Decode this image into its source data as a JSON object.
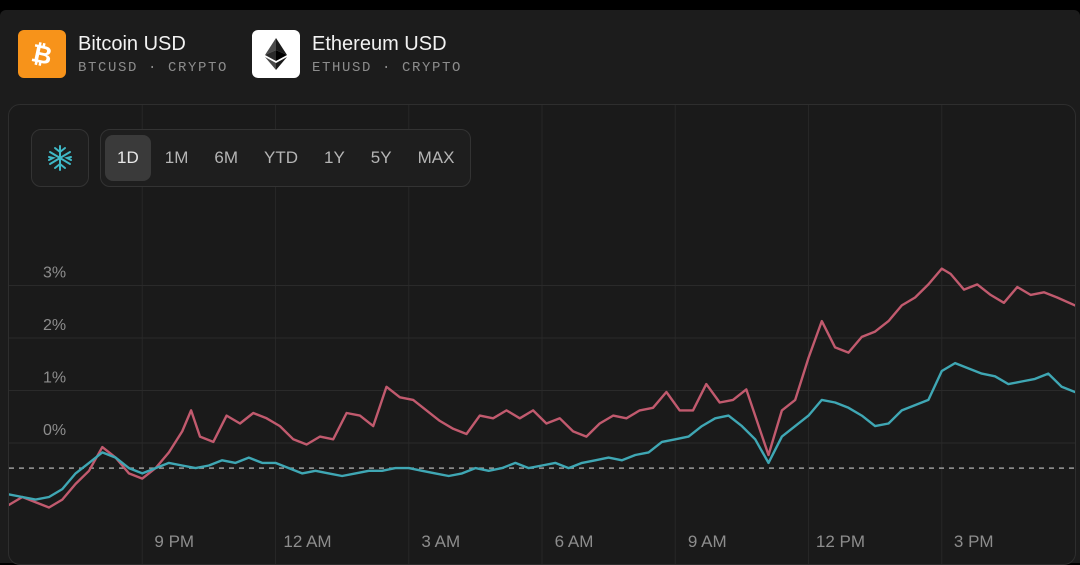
{
  "tickers": [
    {
      "name": "Bitcoin USD",
      "sub": "BTCUSD · CRYPTO",
      "logo_color": "#f7931a",
      "glyph": "₿",
      "icon": "bitcoin-logo-icon"
    },
    {
      "name": "Ethereum USD",
      "sub": "ETHUSD · CRYPTO",
      "logo_color": "#ffffff",
      "icon": "ethereum-logo-icon"
    }
  ],
  "toolbar": {
    "compare_icon": "compare-spark-icon",
    "ranges": [
      "1D",
      "1M",
      "6M",
      "YTD",
      "1Y",
      "5Y",
      "MAX"
    ],
    "active_range": "1D"
  },
  "chart_data": {
    "type": "line",
    "y_unit": "%",
    "ylim": [
      -1.0,
      4.5
    ],
    "y_ticks": [
      0,
      1,
      2,
      3
    ],
    "y_tick_labels": [
      "0%",
      "1%",
      "2%",
      "3%"
    ],
    "x_tick_labels": [
      "9 PM",
      "12 AM",
      "3 AM",
      "6 AM",
      "9 AM",
      "12 PM",
      "3 PM"
    ],
    "x_tick_positions_hours": [
      3,
      6,
      9,
      12,
      15,
      18,
      21
    ],
    "x_range_hours": [
      0,
      24
    ],
    "baseline": -0.25,
    "grid": true,
    "series": [
      {
        "color": "#c15a6e",
        "points": [
          [
            0.0,
            -0.95
          ],
          [
            0.3,
            -0.8
          ],
          [
            0.6,
            -0.9
          ],
          [
            0.9,
            -1.0
          ],
          [
            1.2,
            -0.85
          ],
          [
            1.5,
            -0.55
          ],
          [
            1.8,
            -0.3
          ],
          [
            2.1,
            0.15
          ],
          [
            2.4,
            -0.05
          ],
          [
            2.7,
            -0.35
          ],
          [
            3.0,
            -0.45
          ],
          [
            3.3,
            -0.25
          ],
          [
            3.6,
            0.05
          ],
          [
            3.9,
            0.45
          ],
          [
            4.1,
            0.85
          ],
          [
            4.3,
            0.35
          ],
          [
            4.6,
            0.25
          ],
          [
            4.9,
            0.75
          ],
          [
            5.2,
            0.6
          ],
          [
            5.5,
            0.8
          ],
          [
            5.8,
            0.7
          ],
          [
            6.1,
            0.55
          ],
          [
            6.4,
            0.3
          ],
          [
            6.7,
            0.2
          ],
          [
            7.0,
            0.35
          ],
          [
            7.3,
            0.3
          ],
          [
            7.6,
            0.8
          ],
          [
            7.9,
            0.75
          ],
          [
            8.2,
            0.55
          ],
          [
            8.5,
            1.3
          ],
          [
            8.8,
            1.1
          ],
          [
            9.1,
            1.05
          ],
          [
            9.4,
            0.85
          ],
          [
            9.7,
            0.65
          ],
          [
            10.0,
            0.5
          ],
          [
            10.3,
            0.4
          ],
          [
            10.6,
            0.75
          ],
          [
            10.9,
            0.7
          ],
          [
            11.2,
            0.85
          ],
          [
            11.5,
            0.7
          ],
          [
            11.8,
            0.85
          ],
          [
            12.1,
            0.6
          ],
          [
            12.4,
            0.7
          ],
          [
            12.7,
            0.45
          ],
          [
            13.0,
            0.35
          ],
          [
            13.3,
            0.6
          ],
          [
            13.6,
            0.75
          ],
          [
            13.9,
            0.7
          ],
          [
            14.2,
            0.85
          ],
          [
            14.5,
            0.9
          ],
          [
            14.8,
            1.2
          ],
          [
            15.1,
            0.85
          ],
          [
            15.4,
            0.85
          ],
          [
            15.7,
            1.35
          ],
          [
            16.0,
            1.0
          ],
          [
            16.3,
            1.05
          ],
          [
            16.6,
            1.25
          ],
          [
            16.9,
            0.5
          ],
          [
            17.1,
            0.0
          ],
          [
            17.4,
            0.85
          ],
          [
            17.7,
            1.05
          ],
          [
            18.0,
            1.85
          ],
          [
            18.3,
            2.55
          ],
          [
            18.6,
            2.05
          ],
          [
            18.9,
            1.95
          ],
          [
            19.2,
            2.25
          ],
          [
            19.5,
            2.35
          ],
          [
            19.8,
            2.55
          ],
          [
            20.1,
            2.85
          ],
          [
            20.4,
            3.0
          ],
          [
            20.7,
            3.25
          ],
          [
            21.0,
            3.55
          ],
          [
            21.2,
            3.45
          ],
          [
            21.5,
            3.15
          ],
          [
            21.8,
            3.25
          ],
          [
            22.1,
            3.05
          ],
          [
            22.4,
            2.9
          ],
          [
            22.7,
            3.2
          ],
          [
            23.0,
            3.05
          ],
          [
            23.3,
            3.1
          ],
          [
            23.6,
            3.0
          ],
          [
            24.0,
            2.85
          ]
        ]
      },
      {
        "color": "#3fa7b4",
        "points": [
          [
            0.0,
            -0.75
          ],
          [
            0.3,
            -0.8
          ],
          [
            0.6,
            -0.85
          ],
          [
            0.9,
            -0.8
          ],
          [
            1.2,
            -0.65
          ],
          [
            1.5,
            -0.35
          ],
          [
            1.8,
            -0.15
          ],
          [
            2.1,
            0.05
          ],
          [
            2.4,
            -0.05
          ],
          [
            2.7,
            -0.25
          ],
          [
            3.0,
            -0.35
          ],
          [
            3.3,
            -0.25
          ],
          [
            3.6,
            -0.15
          ],
          [
            3.9,
            -0.2
          ],
          [
            4.2,
            -0.25
          ],
          [
            4.5,
            -0.2
          ],
          [
            4.8,
            -0.1
          ],
          [
            5.1,
            -0.15
          ],
          [
            5.4,
            -0.05
          ],
          [
            5.7,
            -0.15
          ],
          [
            6.0,
            -0.15
          ],
          [
            6.3,
            -0.25
          ],
          [
            6.6,
            -0.35
          ],
          [
            6.9,
            -0.3
          ],
          [
            7.2,
            -0.35
          ],
          [
            7.5,
            -0.4
          ],
          [
            7.8,
            -0.35
          ],
          [
            8.1,
            -0.3
          ],
          [
            8.4,
            -0.3
          ],
          [
            8.7,
            -0.25
          ],
          [
            9.0,
            -0.25
          ],
          [
            9.3,
            -0.3
          ],
          [
            9.6,
            -0.35
          ],
          [
            9.9,
            -0.4
          ],
          [
            10.2,
            -0.35
          ],
          [
            10.5,
            -0.25
          ],
          [
            10.8,
            -0.3
          ],
          [
            11.1,
            -0.25
          ],
          [
            11.4,
            -0.15
          ],
          [
            11.7,
            -0.25
          ],
          [
            12.0,
            -0.2
          ],
          [
            12.3,
            -0.15
          ],
          [
            12.6,
            -0.25
          ],
          [
            12.9,
            -0.15
          ],
          [
            13.2,
            -0.1
          ],
          [
            13.5,
            -0.05
          ],
          [
            13.8,
            -0.1
          ],
          [
            14.1,
            0.0
          ],
          [
            14.4,
            0.05
          ],
          [
            14.7,
            0.25
          ],
          [
            15.0,
            0.3
          ],
          [
            15.3,
            0.35
          ],
          [
            15.6,
            0.55
          ],
          [
            15.9,
            0.7
          ],
          [
            16.2,
            0.75
          ],
          [
            16.5,
            0.55
          ],
          [
            16.8,
            0.3
          ],
          [
            17.1,
            -0.15
          ],
          [
            17.4,
            0.35
          ],
          [
            17.7,
            0.55
          ],
          [
            18.0,
            0.75
          ],
          [
            18.3,
            1.05
          ],
          [
            18.6,
            1.0
          ],
          [
            18.9,
            0.9
          ],
          [
            19.2,
            0.75
          ],
          [
            19.5,
            0.55
          ],
          [
            19.8,
            0.6
          ],
          [
            20.1,
            0.85
          ],
          [
            20.4,
            0.95
          ],
          [
            20.7,
            1.05
          ],
          [
            21.0,
            1.6
          ],
          [
            21.3,
            1.75
          ],
          [
            21.6,
            1.65
          ],
          [
            21.9,
            1.55
          ],
          [
            22.2,
            1.5
          ],
          [
            22.5,
            1.35
          ],
          [
            22.8,
            1.4
          ],
          [
            23.1,
            1.45
          ],
          [
            23.4,
            1.55
          ],
          [
            23.7,
            1.3
          ],
          [
            24.0,
            1.2
          ]
        ]
      }
    ]
  }
}
